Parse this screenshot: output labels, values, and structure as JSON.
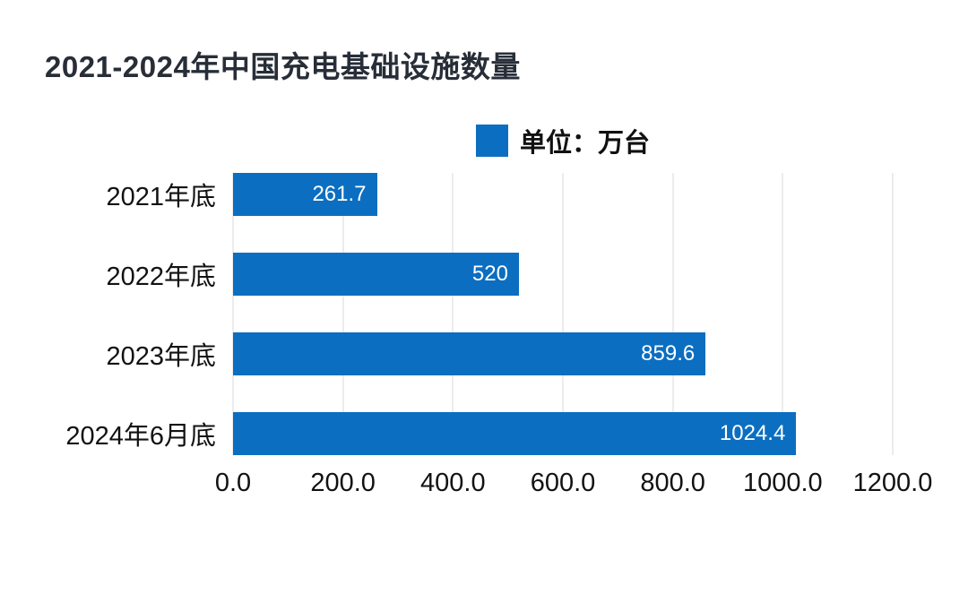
{
  "title": {
    "text": "2021-2024年中国充电基础设施数量"
  },
  "legend": {
    "label": "单位：万台"
  },
  "colors": {
    "bar": "#0B6EC1",
    "grid": "#DADADA",
    "title_text": "#272E38",
    "axis_text": "#121212",
    "value_text": "#FFFFFF"
  },
  "chart_data": {
    "type": "bar",
    "orientation": "horizontal",
    "title": "2021-2024年中国充电基础设施数量",
    "unit_label": "单位：万台",
    "categories": [
      "2021年底",
      "2022年底",
      "2023年底",
      "2024年6月底"
    ],
    "values": [
      261.7,
      520,
      859.6,
      1024.4
    ],
    "value_labels": [
      "261.7",
      "520",
      "859.6",
      "1024.4"
    ],
    "xlabel": "",
    "ylabel": "",
    "xlim": [
      0,
      1200
    ],
    "xticks": [
      "0.0",
      "200.0",
      "400.0",
      "600.0",
      "800.0",
      "1000.0",
      "1200.0"
    ],
    "grid": true,
    "legend_position": "top-center",
    "value_label_position": "inside-end"
  }
}
